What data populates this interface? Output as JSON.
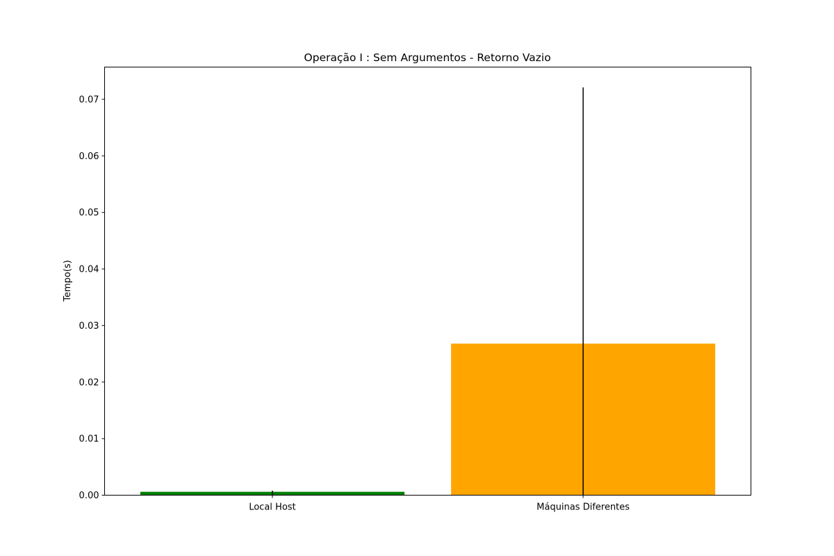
{
  "chart_data": {
    "type": "bar",
    "title": "Operação I : Sem Argumentos - Retorno Vazio",
    "xlabel": "",
    "ylabel": "Tempo(s)",
    "categories": [
      "Local Host",
      "Máquinas Diferentes"
    ],
    "values": [
      0.0006,
      0.0268
    ],
    "error_upper": [
      0.0008,
      0.0721
    ],
    "error_lower": [
      0.0006,
      0.0268
    ],
    "colors": [
      "#008000",
      "#ffa500"
    ],
    "ylim": [
      0,
      0.0757
    ],
    "yticks": [
      0.0,
      0.01,
      0.02,
      0.03,
      0.04,
      0.05,
      0.06,
      0.07
    ],
    "ytick_labels": [
      "0.00",
      "0.01",
      "0.02",
      "0.03",
      "0.04",
      "0.05",
      "0.06",
      "0.07"
    ],
    "grid": false,
    "legend": false
  }
}
